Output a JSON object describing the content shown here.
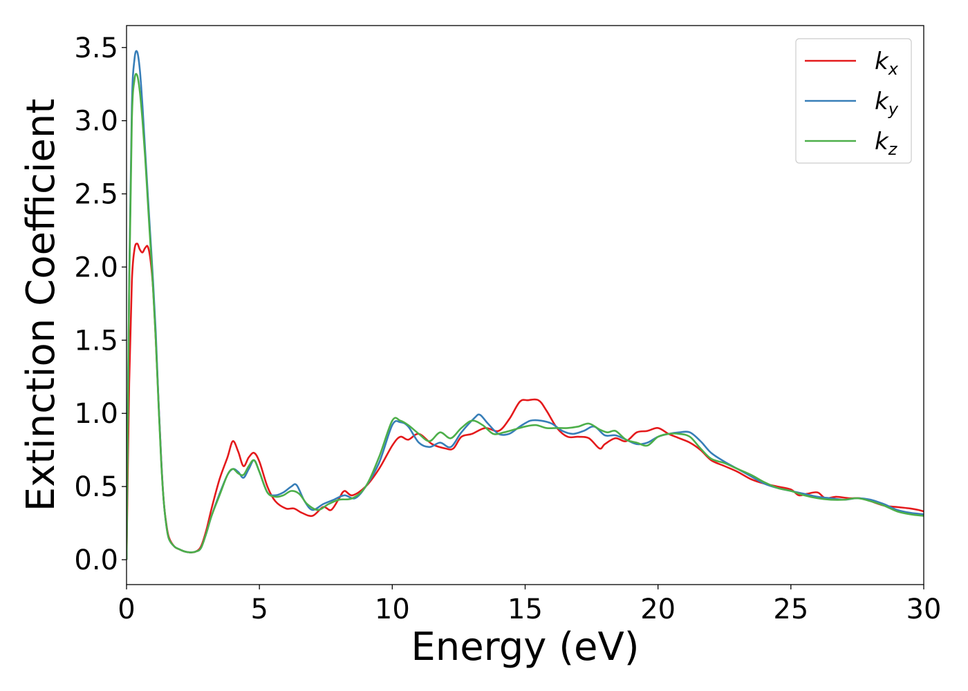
{
  "chart_data": {
    "type": "line",
    "xlabel": "Energy (eV)",
    "ylabel": "Extinction Coefficient",
    "xlim": [
      0,
      30
    ],
    "ylim": [
      -0.17,
      3.65
    ],
    "xticks": [
      0,
      5,
      10,
      15,
      20,
      25,
      30
    ],
    "xtick_labels": [
      "0",
      "5",
      "10",
      "15",
      "20",
      "25",
      "30"
    ],
    "yticks": [
      0.0,
      0.5,
      1.0,
      1.5,
      2.0,
      2.5,
      3.0,
      3.5
    ],
    "ytick_labels": [
      "0.0",
      "0.5",
      "1.0",
      "1.5",
      "2.0",
      "2.5",
      "3.0",
      "3.5"
    ],
    "grid": false,
    "legend_position": "top-right",
    "series": [
      {
        "name": "k",
        "subscript": "x",
        "color": "#e41a1c",
        "x": [
          0,
          0.1,
          0.2,
          0.3,
          0.4,
          0.5,
          0.6,
          0.7,
          0.8,
          0.9,
          1.0,
          1.1,
          1.2,
          1.3,
          1.4,
          1.5,
          1.6,
          1.8,
          2.0,
          2.2,
          2.4,
          2.6,
          2.8,
          3.0,
          3.2,
          3.5,
          3.8,
          4.0,
          4.2,
          4.4,
          4.6,
          4.8,
          5.0,
          5.3,
          5.6,
          6.0,
          6.3,
          6.6,
          7.0,
          7.4,
          7.7,
          8.0,
          8.2,
          8.5,
          9.0,
          9.5,
          10.0,
          10.3,
          10.6,
          11.0,
          11.5,
          12.0,
          12.3,
          12.6,
          13.0,
          13.5,
          14.0,
          14.4,
          14.8,
          15.1,
          15.5,
          15.8,
          16.2,
          16.6,
          17.0,
          17.4,
          17.8,
          18.0,
          18.4,
          18.8,
          19.2,
          19.6,
          20.0,
          20.4,
          20.8,
          21.2,
          21.6,
          22.0,
          22.5,
          23.0,
          23.5,
          24.0,
          24.5,
          25.0,
          25.3,
          25.6,
          26.0,
          26.3,
          26.7,
          27.2,
          27.6,
          28.0,
          28.5,
          29.0,
          29.5,
          29.8,
          30
        ],
        "y": [
          0.0,
          1.2,
          1.9,
          2.12,
          2.16,
          2.12,
          2.1,
          2.13,
          2.14,
          2.05,
          1.85,
          1.5,
          1.1,
          0.7,
          0.4,
          0.24,
          0.15,
          0.09,
          0.07,
          0.055,
          0.05,
          0.055,
          0.09,
          0.2,
          0.35,
          0.55,
          0.7,
          0.81,
          0.74,
          0.64,
          0.7,
          0.73,
          0.67,
          0.5,
          0.4,
          0.35,
          0.35,
          0.32,
          0.3,
          0.36,
          0.34,
          0.42,
          0.47,
          0.44,
          0.5,
          0.62,
          0.78,
          0.84,
          0.82,
          0.86,
          0.79,
          0.76,
          0.76,
          0.84,
          0.86,
          0.9,
          0.88,
          0.96,
          1.08,
          1.09,
          1.09,
          1.02,
          0.9,
          0.84,
          0.84,
          0.83,
          0.76,
          0.79,
          0.83,
          0.81,
          0.87,
          0.88,
          0.9,
          0.86,
          0.83,
          0.8,
          0.75,
          0.68,
          0.64,
          0.6,
          0.55,
          0.52,
          0.5,
          0.48,
          0.44,
          0.45,
          0.46,
          0.42,
          0.43,
          0.42,
          0.42,
          0.4,
          0.37,
          0.36,
          0.35,
          0.34,
          0.33
        ]
      },
      {
        "name": "k",
        "subscript": "y",
        "color": "#377eb8",
        "x": [
          0,
          0.1,
          0.2,
          0.3,
          0.4,
          0.5,
          0.6,
          0.7,
          0.8,
          0.9,
          1.0,
          1.1,
          1.2,
          1.3,
          1.4,
          1.5,
          1.6,
          1.8,
          2.0,
          2.2,
          2.4,
          2.6,
          2.8,
          3.0,
          3.2,
          3.5,
          3.8,
          4.0,
          4.2,
          4.4,
          4.6,
          4.8,
          5.0,
          5.3,
          5.6,
          5.9,
          6.2,
          6.4,
          6.7,
          7.0,
          7.4,
          7.8,
          8.2,
          8.6,
          9.0,
          9.5,
          10.0,
          10.3,
          10.6,
          11.0,
          11.4,
          11.8,
          12.2,
          12.6,
          13.1,
          13.3,
          13.6,
          14.0,
          14.4,
          14.8,
          15.2,
          15.6,
          16.0,
          16.4,
          16.8,
          17.2,
          17.6,
          18.0,
          18.4,
          18.8,
          19.2,
          19.6,
          20.0,
          20.4,
          20.8,
          21.2,
          21.6,
          22.0,
          22.5,
          23.0,
          23.5,
          24.0,
          24.5,
          25.0,
          25.5,
          26.0,
          26.5,
          27.0,
          27.5,
          28.0,
          28.5,
          29.0,
          29.5,
          30
        ],
        "y": [
          0.0,
          1.9,
          3.1,
          3.42,
          3.47,
          3.35,
          3.1,
          2.8,
          2.5,
          2.2,
          1.9,
          1.55,
          1.1,
          0.7,
          0.4,
          0.23,
          0.14,
          0.09,
          0.07,
          0.055,
          0.05,
          0.055,
          0.08,
          0.18,
          0.3,
          0.45,
          0.58,
          0.62,
          0.6,
          0.56,
          0.62,
          0.68,
          0.6,
          0.46,
          0.44,
          0.46,
          0.5,
          0.51,
          0.4,
          0.34,
          0.38,
          0.41,
          0.44,
          0.42,
          0.5,
          0.66,
          0.92,
          0.94,
          0.91,
          0.8,
          0.77,
          0.8,
          0.77,
          0.87,
          0.97,
          0.99,
          0.93,
          0.86,
          0.86,
          0.91,
          0.95,
          0.95,
          0.93,
          0.88,
          0.86,
          0.88,
          0.91,
          0.85,
          0.85,
          0.82,
          0.79,
          0.8,
          0.84,
          0.86,
          0.87,
          0.87,
          0.81,
          0.73,
          0.67,
          0.62,
          0.57,
          0.52,
          0.49,
          0.47,
          0.45,
          0.43,
          0.42,
          0.41,
          0.42,
          0.41,
          0.38,
          0.34,
          0.32,
          0.31
        ]
      },
      {
        "name": "k",
        "subscript": "z",
        "color": "#4daf4a",
        "x": [
          0,
          0.1,
          0.2,
          0.3,
          0.4,
          0.5,
          0.6,
          0.7,
          0.8,
          0.9,
          1.0,
          1.1,
          1.2,
          1.3,
          1.4,
          1.5,
          1.6,
          1.8,
          2.0,
          2.2,
          2.4,
          2.6,
          2.8,
          3.0,
          3.2,
          3.5,
          3.8,
          4.0,
          4.2,
          4.4,
          4.6,
          4.8,
          5.0,
          5.3,
          5.6,
          5.9,
          6.2,
          6.5,
          6.8,
          7.2,
          7.6,
          8.0,
          8.5,
          9.0,
          9.5,
          10.0,
          10.3,
          10.6,
          11.0,
          11.4,
          11.8,
          12.2,
          12.6,
          13.0,
          13.4,
          13.8,
          14.2,
          14.6,
          15.0,
          15.4,
          15.8,
          16.2,
          16.6,
          17.0,
          17.4,
          17.8,
          18.1,
          18.4,
          18.8,
          19.2,
          19.6,
          20.0,
          20.4,
          20.8,
          21.2,
          21.6,
          22.0,
          22.5,
          23.0,
          23.5,
          24.0,
          24.5,
          25.0,
          25.5,
          26.0,
          26.5,
          27.0,
          27.5,
          28.0,
          28.5,
          29.0,
          29.5,
          30
        ],
        "y": [
          0.0,
          1.85,
          3.0,
          3.28,
          3.31,
          3.2,
          3.0,
          2.75,
          2.45,
          2.15,
          1.85,
          1.5,
          1.08,
          0.68,
          0.4,
          0.23,
          0.14,
          0.09,
          0.07,
          0.055,
          0.05,
          0.055,
          0.08,
          0.18,
          0.3,
          0.44,
          0.58,
          0.62,
          0.59,
          0.58,
          0.64,
          0.68,
          0.6,
          0.46,
          0.43,
          0.44,
          0.47,
          0.45,
          0.38,
          0.34,
          0.38,
          0.41,
          0.42,
          0.5,
          0.7,
          0.95,
          0.95,
          0.92,
          0.86,
          0.81,
          0.87,
          0.83,
          0.9,
          0.95,
          0.92,
          0.86,
          0.87,
          0.89,
          0.91,
          0.92,
          0.9,
          0.9,
          0.9,
          0.91,
          0.93,
          0.89,
          0.87,
          0.88,
          0.82,
          0.8,
          0.78,
          0.84,
          0.86,
          0.86,
          0.84,
          0.76,
          0.69,
          0.66,
          0.62,
          0.58,
          0.53,
          0.49,
          0.47,
          0.44,
          0.42,
          0.41,
          0.41,
          0.42,
          0.4,
          0.37,
          0.33,
          0.31,
          0.3
        ]
      }
    ]
  }
}
